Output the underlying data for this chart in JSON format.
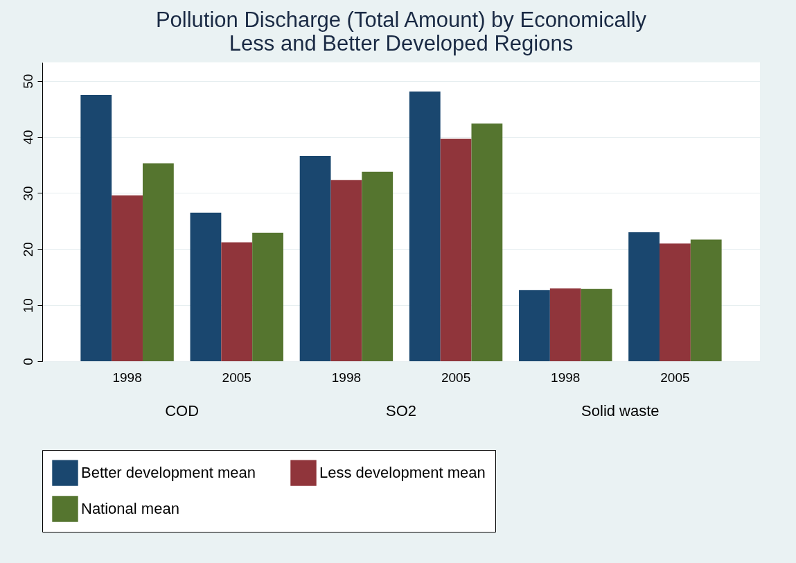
{
  "chart_data": {
    "type": "bar",
    "title": "Pollution Discharge (Total Amount) by Economically\nLess and Better Developed Regions",
    "categories": [
      "1998",
      "2005",
      "1998",
      "2005",
      "1998",
      "2005"
    ],
    "annotations": [
      "COD",
      "SO2",
      "Solid waste"
    ],
    "series": [
      {
        "name": "Better development mean",
        "color": "#1a476f",
        "values": [
          47.5,
          26.5,
          36.6,
          48.1,
          12.7,
          23.0
        ]
      },
      {
        "name": "Less development mean",
        "color": "#90353b",
        "values": [
          29.6,
          21.2,
          32.3,
          39.7,
          13.0,
          21.0
        ]
      },
      {
        "name": "National mean",
        "color": "#55752f",
        "values": [
          35.3,
          22.9,
          33.8,
          42.4,
          12.9,
          21.7
        ]
      }
    ],
    "ylim": [
      0,
      53.3
    ],
    "yticks": [
      0,
      10,
      20,
      30,
      40,
      50
    ],
    "grid": "y",
    "legend": "bottom"
  }
}
